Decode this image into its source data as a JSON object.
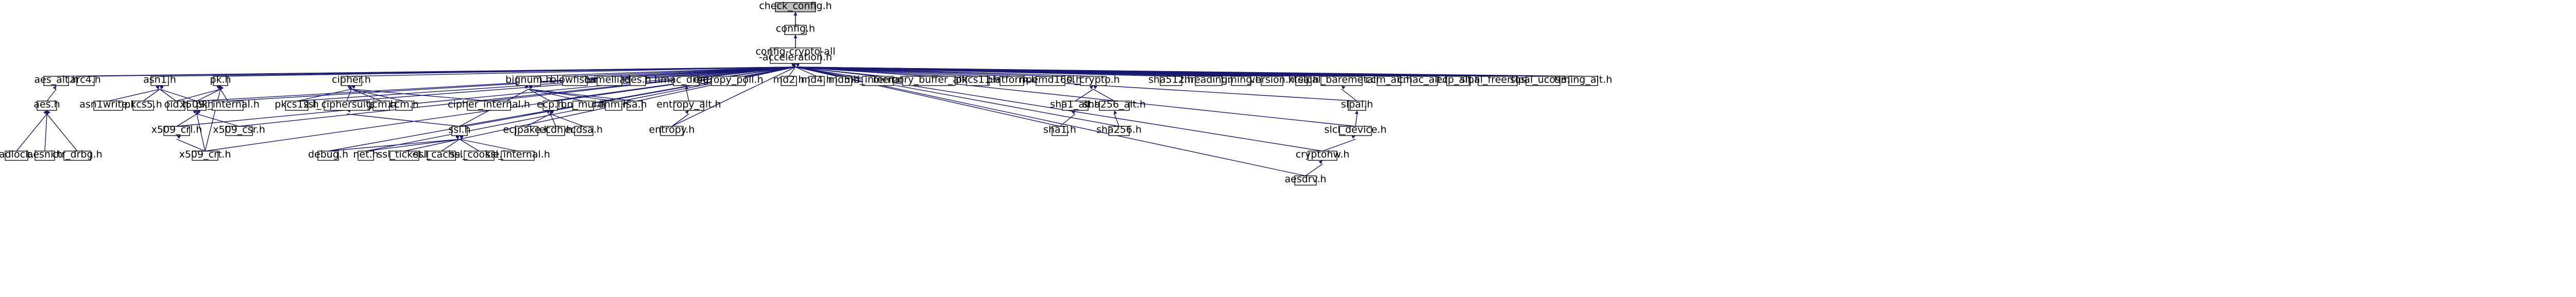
{
  "graph": {
    "nodes": [
      {
        "id": "check_config",
        "label": "check_config.h",
        "root": true
      },
      {
        "id": "config",
        "label": "config.h"
      },
      {
        "id": "cfg_all",
        "label": "config-crypto-all\n-acceleration.h"
      },
      {
        "id": "aes_alt",
        "label": "aes_alt.h"
      },
      {
        "id": "arc4",
        "label": "arc4.h"
      },
      {
        "id": "aes",
        "label": "aes.h"
      },
      {
        "id": "padlock",
        "label": "padlock.h"
      },
      {
        "id": "aesni",
        "label": "aesni.h"
      },
      {
        "id": "ctr_drbg",
        "label": "ctr_drbg.h"
      },
      {
        "id": "asn1",
        "label": "asn1.h"
      },
      {
        "id": "asn1write",
        "label": "asn1write.h"
      },
      {
        "id": "pkcs5",
        "label": "pkcs5.h"
      },
      {
        "id": "oid",
        "label": "oid.h"
      },
      {
        "id": "pk",
        "label": "pk.h"
      },
      {
        "id": "x509",
        "label": "x509.h"
      },
      {
        "id": "pk_internal",
        "label": "pk_internal.h"
      },
      {
        "id": "x509_crl",
        "label": "x509_crl.h"
      },
      {
        "id": "x509_csr",
        "label": "x509_csr.h"
      },
      {
        "id": "x509_crt",
        "label": "x509_crt.h"
      },
      {
        "id": "pkcs12",
        "label": "pkcs12.h"
      },
      {
        "id": "cipher",
        "label": "cipher.h"
      },
      {
        "id": "ssl_ciphersuites",
        "label": "ssl_ciphersuites.h"
      },
      {
        "id": "gcm",
        "label": "gcm.h"
      },
      {
        "id": "ccm",
        "label": "ccm.h"
      },
      {
        "id": "cipher_internal",
        "label": "cipher_internal.h"
      },
      {
        "id": "bignum",
        "label": "bignum.h"
      },
      {
        "id": "ecp",
        "label": "ecp.h"
      },
      {
        "id": "ssl",
        "label": "ssl.h"
      },
      {
        "id": "debug",
        "label": "debug.h"
      },
      {
        "id": "net",
        "label": "net.h"
      },
      {
        "id": "ssl_ticket",
        "label": "ssl_ticket.h"
      },
      {
        "id": "ssl_cache",
        "label": "ssl_cache.h"
      },
      {
        "id": "ssl_cookie",
        "label": "ssl_cookie.h"
      },
      {
        "id": "ssl_internal",
        "label": "ssl_internal.h"
      },
      {
        "id": "ecjpake",
        "label": "ecjpake.h"
      },
      {
        "id": "ecdh",
        "label": "ecdh.h"
      },
      {
        "id": "ecdsa",
        "label": "ecdsa.h"
      },
      {
        "id": "bn_mul",
        "label": "bn_mul.h"
      },
      {
        "id": "dhm",
        "label": "dhm.h"
      },
      {
        "id": "rsa",
        "label": "rsa.h"
      },
      {
        "id": "blowfish",
        "label": "blowfish.h"
      },
      {
        "id": "camellia",
        "label": "camellia.h"
      },
      {
        "id": "des",
        "label": "des.h"
      },
      {
        "id": "hmac_drbg",
        "label": "hmac_drbg.h"
      },
      {
        "id": "entropy_poll",
        "label": "entropy_poll.h"
      },
      {
        "id": "entropy_alt",
        "label": "entropy_alt.h"
      },
      {
        "id": "entropy",
        "label": "entropy.h"
      },
      {
        "id": "md2",
        "label": "md2.h"
      },
      {
        "id": "md4",
        "label": "md4.h"
      },
      {
        "id": "md5",
        "label": "md5.h"
      },
      {
        "id": "md_internal",
        "label": "md_internal.h"
      },
      {
        "id": "memory_buffer_alloc",
        "label": "memory_buffer_alloc.h"
      },
      {
        "id": "pkcs11",
        "label": "pkcs11.h"
      },
      {
        "id": "platform",
        "label": "platform.h"
      },
      {
        "id": "ripemd160",
        "label": "ripemd160.h"
      },
      {
        "id": "sl_crypto",
        "label": "sl_crypto.h"
      },
      {
        "id": "sha1_alt",
        "label": "sha1_alt.h"
      },
      {
        "id": "sha256_alt",
        "label": "sha256_alt.h"
      },
      {
        "id": "sha1",
        "label": "sha1.h"
      },
      {
        "id": "sha256",
        "label": "sha256.h"
      },
      {
        "id": "sha512",
        "label": "sha512.h"
      },
      {
        "id": "threading",
        "label": "threading.h"
      },
      {
        "id": "timing",
        "label": "timing.h"
      },
      {
        "id": "version",
        "label": "version.h"
      },
      {
        "id": "xtea",
        "label": "xtea.h"
      },
      {
        "id": "slpal_baremetal",
        "label": "slpal_baremetal.h"
      },
      {
        "id": "slpal",
        "label": "slpal.h"
      },
      {
        "id": "slcl_device",
        "label": "slcl_device.h"
      },
      {
        "id": "cryptohw",
        "label": "cryptohw.h"
      },
      {
        "id": "aesdrv",
        "label": "aesdrv.h"
      },
      {
        "id": "ccm_alt",
        "label": "ccm_alt.h"
      },
      {
        "id": "cmac_alt",
        "label": "cmac_alt.h"
      },
      {
        "id": "ecp_alt",
        "label": "ecp_alt.h"
      },
      {
        "id": "slpal_freertos",
        "label": "slpal_freertos.h"
      },
      {
        "id": "slpal_ucos3",
        "label": "slpal_ucos3.h"
      },
      {
        "id": "timing_alt",
        "label": "timing_alt.h"
      }
    ],
    "edges": [
      [
        "config",
        "check_config"
      ],
      [
        "cfg_all",
        "config"
      ],
      [
        "cfg_all",
        "check_config"
      ],
      [
        "aes_alt",
        "cfg_all"
      ],
      [
        "arc4",
        "cfg_all"
      ],
      [
        "asn1",
        "cfg_all"
      ],
      [
        "pk",
        "cfg_all"
      ],
      [
        "x509",
        "cfg_all"
      ],
      [
        "pk_internal",
        "cfg_all"
      ],
      [
        "x509_crl",
        "cfg_all"
      ],
      [
        "x509_csr",
        "cfg_all"
      ],
      [
        "x509_crt",
        "cfg_all"
      ],
      [
        "pkcs12",
        "cfg_all"
      ],
      [
        "cipher",
        "cfg_all"
      ],
      [
        "ssl_ciphersuites",
        "cfg_all"
      ],
      [
        "cipher_internal",
        "cfg_all"
      ],
      [
        "bignum",
        "cfg_all"
      ],
      [
        "ecp",
        "cfg_all"
      ],
      [
        "ssl",
        "cfg_all"
      ],
      [
        "debug",
        "cfg_all"
      ],
      [
        "net",
        "cfg_all"
      ],
      [
        "ssl_ticket",
        "cfg_all"
      ],
      [
        "blowfish",
        "cfg_all"
      ],
      [
        "camellia",
        "cfg_all"
      ],
      [
        "des",
        "cfg_all"
      ],
      [
        "hmac_drbg",
        "cfg_all"
      ],
      [
        "entropy_poll",
        "cfg_all"
      ],
      [
        "entropy",
        "cfg_all"
      ],
      [
        "md2",
        "cfg_all"
      ],
      [
        "md4",
        "cfg_all"
      ],
      [
        "md5",
        "cfg_all"
      ],
      [
        "md_internal",
        "cfg_all"
      ],
      [
        "memory_buffer_alloc",
        "cfg_all"
      ],
      [
        "pkcs11",
        "cfg_all"
      ],
      [
        "platform",
        "cfg_all"
      ],
      [
        "ripemd160",
        "cfg_all"
      ],
      [
        "sl_crypto",
        "cfg_all"
      ],
      [
        "sha1",
        "cfg_all"
      ],
      [
        "sha256",
        "cfg_all"
      ],
      [
        "sha512",
        "cfg_all"
      ],
      [
        "threading",
        "cfg_all"
      ],
      [
        "timing",
        "cfg_all"
      ],
      [
        "version",
        "cfg_all"
      ],
      [
        "xtea",
        "cfg_all"
      ],
      [
        "slpal_baremetal",
        "cfg_all"
      ],
      [
        "slpal",
        "cfg_all"
      ],
      [
        "slcl_device",
        "cfg_all"
      ],
      [
        "cryptohw",
        "cfg_all"
      ],
      [
        "aesdrv",
        "cfg_all"
      ],
      [
        "ccm_alt",
        "cfg_all"
      ],
      [
        "cmac_alt",
        "cfg_all"
      ],
      [
        "ecp_alt",
        "cfg_all"
      ],
      [
        "slpal_freertos",
        "cfg_all"
      ],
      [
        "slpal_ucos3",
        "cfg_all"
      ],
      [
        "timing_alt",
        "cfg_all"
      ],
      [
        "aes",
        "aes_alt"
      ],
      [
        "padlock",
        "aes"
      ],
      [
        "aesni",
        "aes"
      ],
      [
        "ctr_drbg",
        "aes"
      ],
      [
        "asn1write",
        "asn1"
      ],
      [
        "pkcs5",
        "asn1"
      ],
      [
        "oid",
        "asn1"
      ],
      [
        "x509",
        "asn1"
      ],
      [
        "oid",
        "pk"
      ],
      [
        "x509",
        "pk"
      ],
      [
        "pk_internal",
        "pk"
      ],
      [
        "x509_crl",
        "x509"
      ],
      [
        "x509_csr",
        "x509"
      ],
      [
        "x509_crt",
        "x509"
      ],
      [
        "x509_crt",
        "x509_crl"
      ],
      [
        "x509_crt",
        "pk"
      ],
      [
        "ssl_ciphersuites",
        "cipher"
      ],
      [
        "gcm",
        "cipher"
      ],
      [
        "ccm",
        "cipher"
      ],
      [
        "cipher_internal",
        "cipher"
      ],
      [
        "pkcs12",
        "cipher"
      ],
      [
        "ssl",
        "ssl_ciphersuites"
      ],
      [
        "ssl",
        "bignum"
      ],
      [
        "ecp",
        "bignum"
      ],
      [
        "bn_mul",
        "bignum"
      ],
      [
        "dhm",
        "bignum"
      ],
      [
        "rsa",
        "bignum"
      ],
      [
        "ecjpake",
        "ecp"
      ],
      [
        "ecdh",
        "ecp"
      ],
      [
        "ecdsa",
        "ecp"
      ],
      [
        "debug",
        "ssl"
      ],
      [
        "net",
        "ssl"
      ],
      [
        "ssl_ticket",
        "ssl"
      ],
      [
        "ssl_cache",
        "ssl"
      ],
      [
        "ssl_cookie",
        "ssl"
      ],
      [
        "ssl_internal",
        "ssl"
      ],
      [
        "entropy",
        "entropy_alt"
      ],
      [
        "entropy_alt",
        "hmac_drbg"
      ],
      [
        "sha1_alt",
        "sl_crypto"
      ],
      [
        "sha256_alt",
        "sl_crypto"
      ],
      [
        "sha1",
        "sha1_alt"
      ],
      [
        "sha256",
        "sha256_alt"
      ],
      [
        "slpal",
        "slpal_baremetal"
      ],
      [
        "slcl_device",
        "slpal"
      ],
      [
        "cryptohw",
        "slcl_device"
      ],
      [
        "aesdrv",
        "cryptohw"
      ]
    ]
  }
}
